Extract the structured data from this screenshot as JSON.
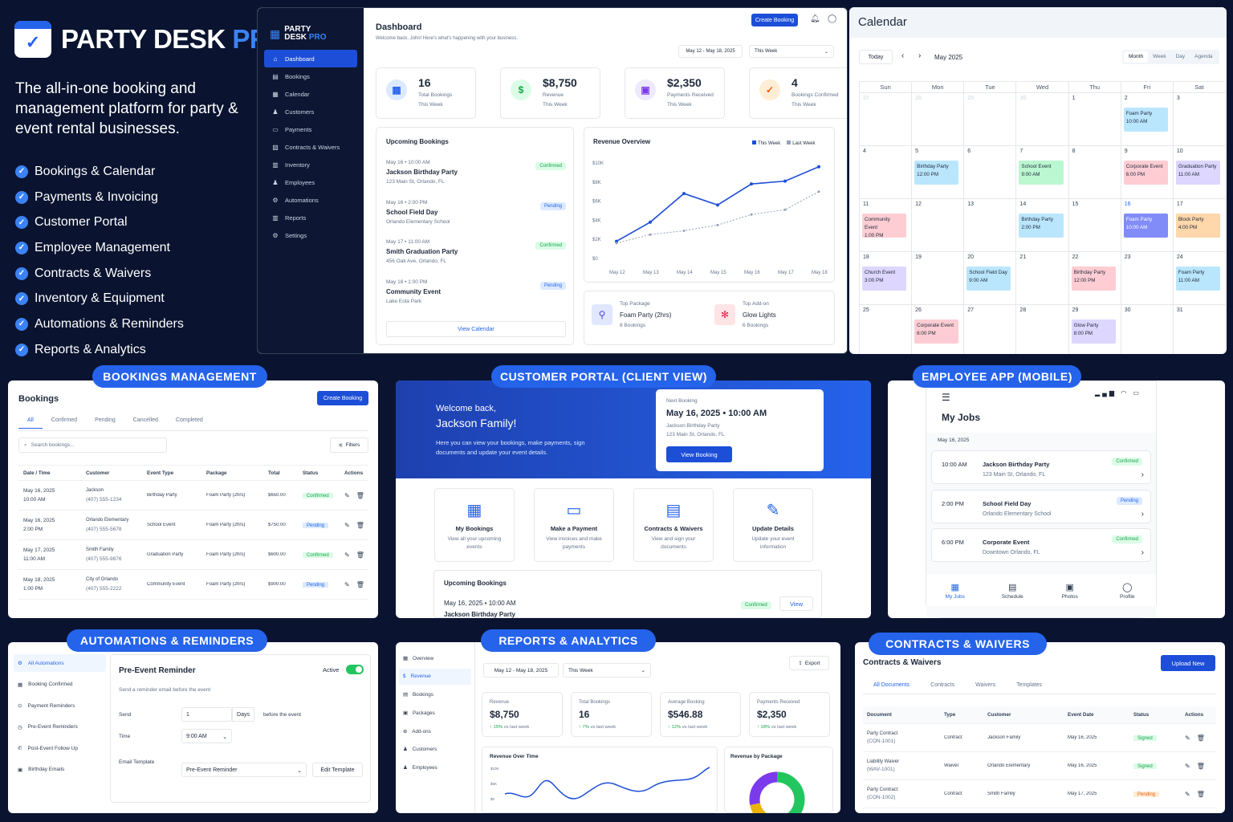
{
  "brand": {
    "name": "PARTY DESK",
    "suffix": "PRO",
    "tagline": "The all-in-one booking and management platform for party & event rental businesses.",
    "features": [
      "Bookings & Calendar",
      "Payments & Invoicing",
      "Customer Portal",
      "Employee Management",
      "Contracts & Waivers",
      "Inventory & Equipment",
      "Automations & Reminders",
      "Reports & Analytics"
    ]
  },
  "dashboard": {
    "logo_line1": "PARTY",
    "logo_line2": "DESK",
    "logo_pro": "PRO",
    "nav": [
      "Dashboard",
      "Bookings",
      "Calendar",
      "Customers",
      "Payments",
      "Contracts & Waivers",
      "Inventory",
      "Employees",
      "Automations",
      "Reports",
      "Settings"
    ],
    "title": "Dashboard",
    "welcome": "Welcome back, John! Here's what's happening with your business.",
    "create_btn": "Create Booking",
    "date_range": "May 12 - May 18, 2025",
    "period": "This Week",
    "stats": [
      {
        "value": "16",
        "label": "Total Bookings",
        "sub": "This Week",
        "color": "#2563eb",
        "bg": "#dbeafe",
        "icon": "▦"
      },
      {
        "value": "$8,750",
        "label": "Revenue",
        "sub": "This Week",
        "color": "#16a34a",
        "bg": "#dcfce7",
        "icon": "$"
      },
      {
        "value": "$2,350",
        "label": "Payments Received",
        "sub": "This Week",
        "color": "#7c3aed",
        "bg": "#ede9fe",
        "icon": "▣"
      },
      {
        "value": "4",
        "label": "Bookings Confirmed",
        "sub": "This Week",
        "color": "#ea580c",
        "bg": "#ffedd5",
        "icon": "✓"
      }
    ],
    "upcoming_title": "Upcoming Bookings",
    "upcoming": [
      {
        "when": "May 16 • 10:00 AM",
        "name": "Jackson Birthday Party",
        "where": "123 Main St, Orlando, FL",
        "status": "Confirmed"
      },
      {
        "when": "May 16 • 2:00 PM",
        "name": "School Field Day",
        "where": "Orlando Elementary School",
        "status": "Pending"
      },
      {
        "when": "May 17 • 11:00 AM",
        "name": "Smith Graduation Party",
        "where": "456 Oak Ave, Orlando, FL",
        "status": "Confirmed"
      },
      {
        "when": "May 18 • 1:00 PM",
        "name": "Community Event",
        "where": "Lake Eola Park",
        "status": "Pending"
      }
    ],
    "view_calendar": "View Calendar",
    "revenue_title": "Revenue Overview",
    "legend_this": "This Week",
    "legend_last": "Last Week",
    "top1_label": "Top Package",
    "top1_name": "Foam Party (2hrs)",
    "top1_sub": "8 Bookings",
    "top2_label": "Top Add-on",
    "top2_name": "Glow Lights",
    "top2_sub": "6 Bookings"
  },
  "chart_data": [
    {
      "type": "line",
      "title": "Revenue Overview",
      "categories": [
        "May 12",
        "May 13",
        "May 14",
        "May 15",
        "May 16",
        "May 17",
        "May 18"
      ],
      "y_ticks": [
        "$0",
        "$2K",
        "$4K",
        "$6K",
        "$8K",
        "$10K"
      ],
      "ylim": [
        0,
        10000
      ],
      "series": [
        {
          "name": "This Week",
          "color": "#1d4ed8",
          "values": [
            1800,
            3800,
            6800,
            5600,
            7800,
            8100,
            9600
          ]
        },
        {
          "name": "Last Week",
          "color": "#94a3b8",
          "values": [
            1600,
            2500,
            2900,
            3500,
            4600,
            5100,
            7000
          ]
        }
      ]
    }
  ],
  "calendar": {
    "title": "Calendar",
    "today": "Today",
    "month": "May 2025",
    "views": [
      "Month",
      "Week",
      "Day",
      "Agenda"
    ],
    "days": [
      "Sun",
      "Mon",
      "Tue",
      "Wed",
      "Thu",
      "Fri",
      "Sat"
    ],
    "weeks": [
      [
        {
          "d": "27",
          "m": 1
        },
        {
          "d": "28",
          "m": 1
        },
        {
          "d": "29",
          "m": 1
        },
        {
          "d": "30",
          "m": 1
        },
        {
          "d": "1"
        },
        {
          "d": "2",
          "ev": "Foam Party",
          "t": "10:00 AM",
          "c": "#bae6fd"
        },
        {
          "d": "3"
        }
      ],
      [
        {
          "d": "4"
        },
        {
          "d": "5",
          "ev": "Birthday Party",
          "t": "12:00 PM",
          "c": "#bae6fd"
        },
        {
          "d": "6"
        },
        {
          "d": "7",
          "ev": "School Event",
          "t": "9:00 AM",
          "c": "#bbf7d0"
        },
        {
          "d": "8"
        },
        {
          "d": "9",
          "ev": "Corporate Event",
          "t": "6:00 PM",
          "c": "#fecdd3"
        },
        {
          "d": "10",
          "ev": "Graduation Party",
          "t": "11:00 AM",
          "c": "#ddd6fe"
        }
      ],
      [
        {
          "d": "11",
          "ev": "Community Event",
          "t": "1:00 PM",
          "c": "#fecdd3"
        },
        {
          "d": "12"
        },
        {
          "d": "13"
        },
        {
          "d": "14",
          "ev": "Birthday Party",
          "t": "2:00 PM",
          "c": "#bae6fd"
        },
        {
          "d": "15"
        },
        {
          "d": "16",
          "ev": "Foam Party",
          "t": "10:00 AM",
          "c": "#818cf8",
          "b": 1
        },
        {
          "d": "17",
          "ev": "Block Party",
          "t": "4:00 PM",
          "c": "#fed7aa"
        }
      ],
      [
        {
          "d": "18",
          "ev": "Church Event",
          "t": "3:00 PM",
          "c": "#ddd6fe"
        },
        {
          "d": "19"
        },
        {
          "d": "20",
          "ev": "School Field Day",
          "t": "9:00 AM",
          "c": "#bae6fd"
        },
        {
          "d": "21"
        },
        {
          "d": "22",
          "ev": "Birthday Party",
          "t": "12:00 PM",
          "c": "#fecdd3"
        },
        {
          "d": "23"
        },
        {
          "d": "24",
          "ev": "Foam Party",
          "t": "11:00 AM",
          "c": "#bae6fd"
        }
      ],
      [
        {
          "d": "25"
        },
        {
          "d": "26",
          "ev": "Corporate Event",
          "t": "6:00 PM",
          "c": "#fecdd3"
        },
        {
          "d": "27"
        },
        {
          "d": "28"
        },
        {
          "d": "29",
          "ev": "Glow Party",
          "t": "8:00 PM",
          "c": "#ddd6fe"
        },
        {
          "d": "30"
        },
        {
          "d": "31"
        }
      ]
    ]
  },
  "labels": {
    "bookings": "BOOKINGS MANAGEMENT",
    "portal": "CUSTOMER PORTAL (CLIENT VIEW)",
    "employee": "EMPLOYEE APP (MOBILE)",
    "automations": "AUTOMATIONS & REMINDERS",
    "reports": "REPORTS & ANALYTICS",
    "contracts": "CONTRACTS & WAIVERS"
  },
  "bookings": {
    "title": "Bookings",
    "create": "Create Booking",
    "tabs": [
      "All",
      "Confirmed",
      "Pending",
      "Cancelled",
      "Completed"
    ],
    "search": "Search bookings...",
    "filters": "Filters",
    "cols": [
      "Date / Time",
      "Customer",
      "Event Type",
      "Package",
      "Total",
      "Status",
      "Actions"
    ],
    "rows": [
      {
        "date": "May 16, 2025",
        "time": "10:00 AM",
        "cust": "Jackson",
        "phone": "(407) 555-1234",
        "type": "Birthday Party",
        "pkg": "Foam Party (2hrs)",
        "total": "$650.00",
        "status": "Confirmed"
      },
      {
        "date": "May 16, 2025",
        "time": "2:00 PM",
        "cust": "Orlando Elementary",
        "phone": "(407) 555-5678",
        "type": "School Event",
        "pkg": "Foam Party (2hrs)",
        "total": "$750.00",
        "status": "Pending"
      },
      {
        "date": "May 17, 2025",
        "time": "11:00 AM",
        "cust": "Smith Family",
        "phone": "(407) 555-9876",
        "type": "Graduation Party",
        "pkg": "Foam Party (2hrs)",
        "total": "$600.00",
        "status": "Confirmed"
      },
      {
        "date": "May 18, 2025",
        "time": "1:00 PM",
        "cust": "City of Orlando",
        "phone": "(407) 555-2222",
        "type": "Community Event",
        "pkg": "Foam Party (2hrs)",
        "total": "$900.00",
        "status": "Pending"
      }
    ]
  },
  "portal": {
    "welcome": "Welcome back,",
    "name": "Jackson Family!",
    "desc": "Here you can view your bookings, make payments, sign documents and update your event details.",
    "next_label": "Next Booking",
    "next_date": "May 16, 2025  •  10:00 AM",
    "next_name": "Jackson Birthday Party",
    "next_addr": "123 Main St, Orlando, FL",
    "view_btn": "View Booking",
    "tiles": [
      {
        "title": "My Bookings",
        "desc": "View all your upcoming events",
        "icon": "▦"
      },
      {
        "title": "Make a Payment",
        "desc": "View invoices and make payments",
        "icon": "▭"
      },
      {
        "title": "Contracts & Waivers",
        "desc": "View and sign your documents",
        "icon": "▤"
      },
      {
        "title": "Update Details",
        "desc": "Update your event information",
        "icon": "✎"
      }
    ],
    "upcoming_title": "Upcoming Bookings",
    "up_date": "May 16, 2025",
    "up_time": "10:00 AM",
    "up_name": "Jackson Birthday Party",
    "up_status": "Confirmed",
    "up_view": "View"
  },
  "employee": {
    "title": "My Jobs",
    "date": "May 16, 2025",
    "jobs": [
      {
        "time": "10:00 AM",
        "name": "Jackson Birthday Party",
        "addr": "123 Main St, Orlando, FL",
        "status": "Confirmed"
      },
      {
        "time": "2:00 PM",
        "name": "School Field Day",
        "addr": "Orlando Elementary School",
        "status": "Pending"
      },
      {
        "time": "6:00 PM",
        "name": "Corporate Event",
        "addr": "Downtown Orlando, FL",
        "status": "Confirmed"
      }
    ],
    "nav": [
      {
        "l": "My Jobs",
        "i": "▦"
      },
      {
        "l": "Schedule",
        "i": "▤"
      },
      {
        "l": "Photos",
        "i": "▣"
      },
      {
        "l": "Profile",
        "i": "◯"
      }
    ]
  },
  "automations": {
    "nav": [
      "All Automations",
      "Booking Confirmed",
      "Payment Reminders",
      "Pre-Event Reminders",
      "Post-Event Follow Up",
      "Birthday Emails"
    ],
    "title": "Pre-Event Reminder",
    "active": "Active",
    "desc": "Send a reminder email before the event",
    "send": "Send",
    "send_val": "1",
    "days": "Days",
    "before": "before the event",
    "time": "Time",
    "time_val": "9:00 AM",
    "template": "Email Template",
    "template_val": "Pre-Event Reminder",
    "edit": "Edit Template"
  },
  "reports": {
    "nav": [
      "Overview",
      "Revenue",
      "Bookings",
      "Packages",
      "Add-ons",
      "Customers",
      "Employees"
    ],
    "date_range": "May 12 - May 18, 2025",
    "period": "This Week",
    "export": "Export",
    "stats": [
      {
        "label": "Revenue",
        "value": "$8,750",
        "delta": "↑ 15%",
        "vs": "vs last week"
      },
      {
        "label": "Total Bookings",
        "value": "16",
        "delta": "↑ 7%",
        "vs": "vs last week"
      },
      {
        "label": "Average Booking",
        "value": "$546.88",
        "delta": "↑ 12%",
        "vs": "vs last week"
      },
      {
        "label": "Payments Received",
        "value": "$2,350",
        "delta": "↑ 18%",
        "vs": "vs last week"
      }
    ],
    "rot_title": "Revenue Over Time",
    "rot_ticks": [
      "$10K",
      "$5K",
      "$0"
    ],
    "rbp_title": "Revenue by Package"
  },
  "contracts": {
    "title": "Contracts & Waivers",
    "upload": "Upload New",
    "tabs": [
      "All Documents",
      "Contracts",
      "Waivers",
      "Templates"
    ],
    "cols": [
      "Document",
      "Type",
      "Customer",
      "Event Date",
      "Status",
      "Actions"
    ],
    "rows": [
      {
        "doc": "Party Contract",
        "id": "(CON-1001)",
        "type": "Contract",
        "cust": "Jackson Family",
        "date": "May 16, 2025",
        "status": "Signed"
      },
      {
        "doc": "Liability Waiver",
        "id": "(WAV-1001)",
        "type": "Waiver",
        "cust": "Orlando Elementary",
        "date": "May 16, 2025",
        "status": "Signed"
      },
      {
        "doc": "Party Contract",
        "id": "(CON-1002)",
        "type": "Contract",
        "cust": "Smith Family",
        "date": "May 17, 2025",
        "status": "Pending"
      }
    ]
  }
}
